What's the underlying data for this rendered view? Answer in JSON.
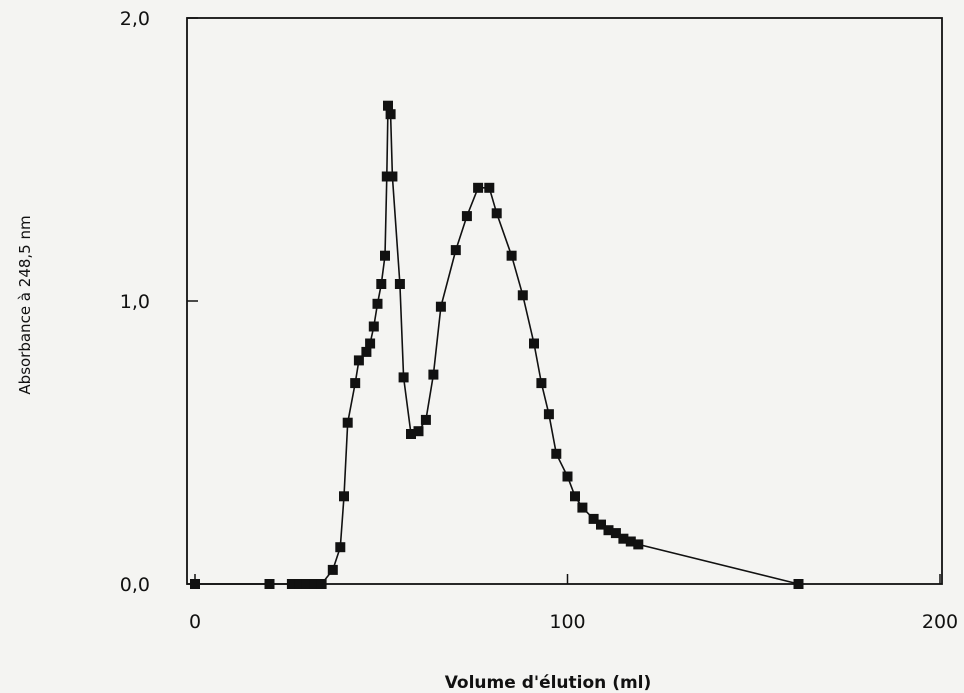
{
  "chart_data": {
    "type": "line",
    "xlabel": "Volume d'élution (ml)",
    "ylabel": "Absorbance à 248,5 nm",
    "xlim": [
      0,
      200
    ],
    "ylim": [
      0,
      2
    ],
    "x_ticks": [
      {
        "value": 0,
        "label": "0"
      },
      {
        "value": 100,
        "label": "100"
      },
      {
        "value": 200,
        "label": "200"
      }
    ],
    "y_ticks": [
      {
        "value": 0,
        "label": "0,0"
      },
      {
        "value": 1,
        "label": "1,0"
      },
      {
        "value": 2,
        "label": "2,0"
      }
    ],
    "grid": false,
    "marker": "square",
    "series": [
      {
        "color": "#111111",
        "points": [
          [
            0,
            0.0
          ],
          [
            20,
            0.0
          ],
          [
            26,
            0.0
          ],
          [
            28,
            0.0
          ],
          [
            30,
            0.0
          ],
          [
            32,
            0.0
          ],
          [
            34,
            0.0
          ],
          [
            37,
            0.05
          ],
          [
            39,
            0.13
          ],
          [
            40,
            0.31
          ],
          [
            41,
            0.57
          ],
          [
            43,
            0.71
          ],
          [
            44,
            0.79
          ],
          [
            46,
            0.82
          ],
          [
            47,
            0.85
          ],
          [
            48,
            0.91
          ],
          [
            49,
            0.99
          ],
          [
            50,
            1.06
          ],
          [
            51,
            1.16
          ],
          [
            51.5,
            1.44
          ],
          [
            51.8,
            1.69
          ],
          [
            52.5,
            1.66
          ],
          [
            53,
            1.44
          ],
          [
            55,
            1.06
          ],
          [
            56,
            0.73
          ],
          [
            58,
            0.53
          ],
          [
            60,
            0.54
          ],
          [
            62,
            0.58
          ],
          [
            64,
            0.74
          ],
          [
            66,
            0.98
          ],
          [
            70,
            1.18
          ],
          [
            73,
            1.3
          ],
          [
            76,
            1.4
          ],
          [
            79,
            1.4
          ],
          [
            81,
            1.31
          ],
          [
            85,
            1.16
          ],
          [
            88,
            1.02
          ],
          [
            91,
            0.85
          ],
          [
            93,
            0.71
          ],
          [
            95,
            0.6
          ],
          [
            97,
            0.46
          ],
          [
            100,
            0.38
          ],
          [
            102,
            0.31
          ],
          [
            104,
            0.27
          ],
          [
            107,
            0.23
          ],
          [
            109,
            0.21
          ],
          [
            111,
            0.19
          ],
          [
            113,
            0.18
          ],
          [
            115,
            0.16
          ],
          [
            117,
            0.15
          ],
          [
            119,
            0.14
          ],
          [
            162,
            0.0
          ]
        ]
      }
    ]
  }
}
